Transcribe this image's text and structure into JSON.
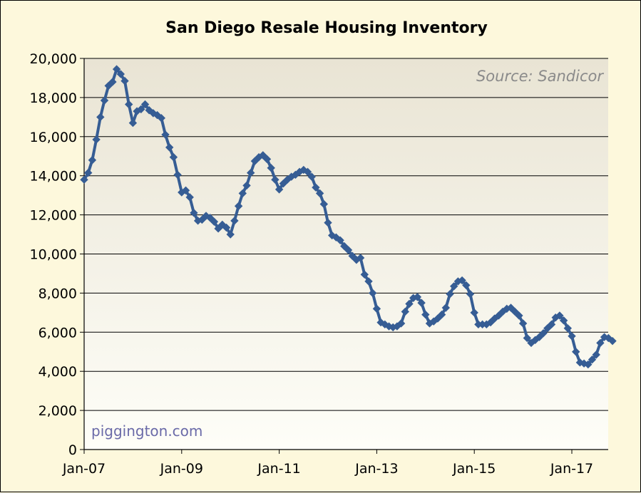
{
  "chart_data": {
    "type": "line",
    "title": "San Diego Resale Housing Inventory",
    "annotations": {
      "source": "Source: Sandicor",
      "credit": "piggington.com"
    },
    "xlabel": "",
    "ylabel": "",
    "x_start": "Jan-07",
    "x_end": "Sep-17",
    "x_ticks": [
      "Jan-07",
      "Jan-09",
      "Jan-11",
      "Jan-13",
      "Jan-15",
      "Jan-17"
    ],
    "y_ticks": [
      "0",
      "2,000",
      "4,000",
      "6,000",
      "8,000",
      "10,000",
      "12,000",
      "14,000",
      "16,000",
      "18,000",
      "20,000"
    ],
    "ylim": [
      0,
      20000
    ],
    "grid": "horizontal",
    "legend": "none",
    "series": [
      {
        "color": "#365d94",
        "marker": "diamond",
        "values": [
          13800,
          14150,
          14800,
          15850,
          17000,
          17850,
          18600,
          18800,
          19450,
          19200,
          18850,
          17650,
          16700,
          17300,
          17400,
          17650,
          17350,
          17200,
          17100,
          16950,
          16100,
          15450,
          14950,
          14050,
          13150,
          13250,
          12900,
          12100,
          11700,
          11750,
          11950,
          11850,
          11650,
          11300,
          11500,
          11350,
          11000,
          11700,
          12450,
          13100,
          13500,
          14150,
          14750,
          14950,
          15050,
          14850,
          14400,
          13800,
          13300,
          13600,
          13800,
          13950,
          14050,
          14200,
          14300,
          14200,
          13950,
          13400,
          13100,
          12550,
          11600,
          10950,
          10850,
          10700,
          10400,
          10200,
          9900,
          9700,
          9800,
          8950,
          8600,
          8000,
          7200,
          6500,
          6400,
          6300,
          6250,
          6300,
          6450,
          7050,
          7450,
          7750,
          7800,
          7500,
          6900,
          6450,
          6550,
          6700,
          6900,
          7250,
          7950,
          8350,
          8600,
          8650,
          8400,
          7950,
          7000,
          6400,
          6400,
          6400,
          6500,
          6700,
          6850,
          7050,
          7200,
          7250,
          7050,
          6850,
          6450,
          5700,
          5450,
          5600,
          5750,
          5950,
          6200,
          6400,
          6750,
          6850,
          6600,
          6200,
          5800,
          5000,
          4450,
          4400,
          4350,
          4600,
          4850,
          5450,
          5750,
          5700,
          5550
        ]
      }
    ]
  }
}
